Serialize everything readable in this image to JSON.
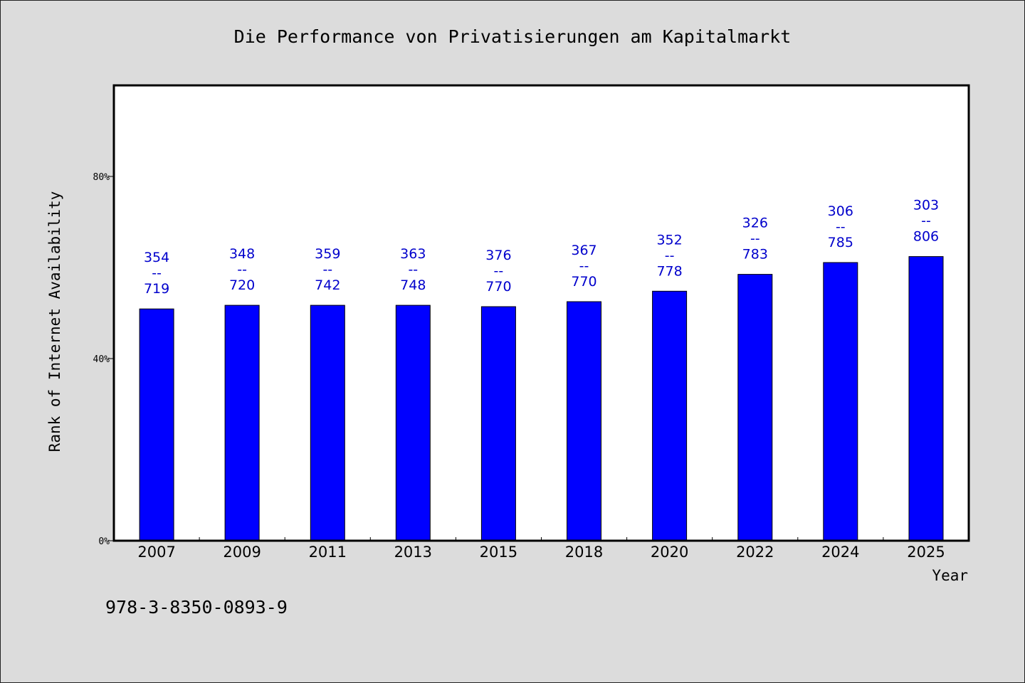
{
  "chart_data": {
    "type": "bar",
    "title": "Die Performance von Privatisierungen am Kapitalmarkt",
    "xlabel": "Year",
    "ylabel": "Rank of Internet Availability",
    "categories": [
      "2007",
      "2009",
      "2011",
      "2013",
      "2015",
      "2018",
      "2020",
      "2022",
      "2024",
      "2025"
    ],
    "values": [
      50.9,
      51.7,
      51.7,
      51.7,
      51.4,
      52.5,
      54.8,
      58.5,
      61.1,
      62.4
    ],
    "data_labels": [
      {
        "top": "354",
        "sep": "--",
        "bottom": "719"
      },
      {
        "top": "348",
        "sep": "--",
        "bottom": "720"
      },
      {
        "top": "359",
        "sep": "--",
        "bottom": "742"
      },
      {
        "top": "363",
        "sep": "--",
        "bottom": "748"
      },
      {
        "top": "376",
        "sep": "--",
        "bottom": "770"
      },
      {
        "top": "367",
        "sep": "--",
        "bottom": "770"
      },
      {
        "top": "352",
        "sep": "--",
        "bottom": "778"
      },
      {
        "top": "326",
        "sep": "--",
        "bottom": "783"
      },
      {
        "top": "306",
        "sep": "--",
        "bottom": "785"
      },
      {
        "top": "303",
        "sep": "--",
        "bottom": "806"
      }
    ],
    "ylim": [
      0,
      100
    ],
    "yticks": [
      0,
      40,
      80
    ],
    "ytick_labels": [
      "0%",
      "40%",
      "80%"
    ],
    "grid": false,
    "bar_color": "#0000ff",
    "label_color": "#0000cc",
    "background": "#dcdcdc",
    "plot_background": "#ffffff"
  },
  "footer": {
    "isbn": "978-3-8350-0893-9"
  }
}
